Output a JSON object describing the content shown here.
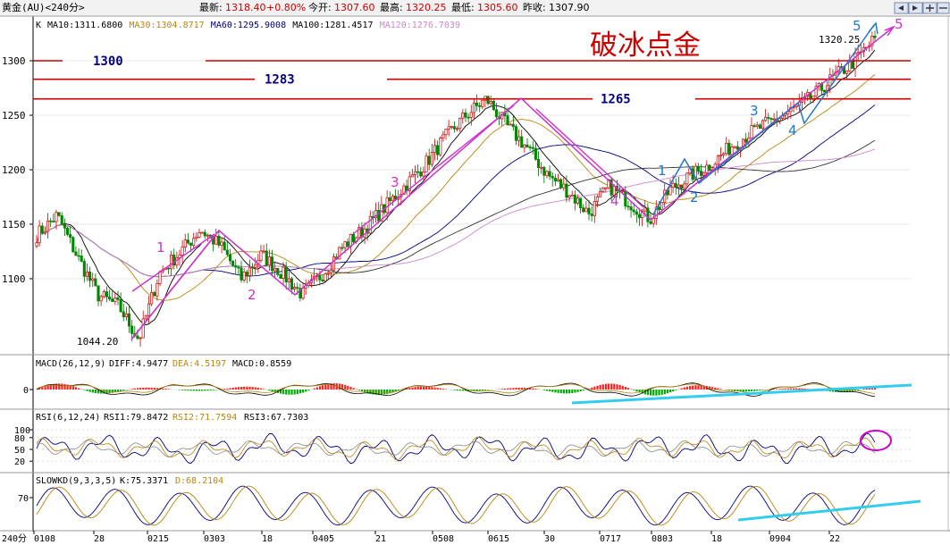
{
  "header": {
    "symbol": "黄金(AU)<240分>",
    "latest_label": "最新:",
    "latest_value": "1318.40",
    "change": "+0.80%",
    "open_label": "今开:",
    "open_value": "1307.60",
    "high_label": "最高:",
    "high_value": "1320.25",
    "low_label": "最低:",
    "low_value": "1305.60",
    "prev_label": "昨收:",
    "prev_value": "1307.90"
  },
  "ma_legend": [
    {
      "text": "MA10:1311.6800",
      "color": "#000000"
    },
    {
      "text": "MA30:1304.8717",
      "color": "#b8860b"
    },
    {
      "text": "MA60:1295.9008",
      "color": "#000080"
    },
    {
      "text": "MA100:1281.4517",
      "color": "#000000"
    },
    {
      "text": "MA120:1276.7039",
      "color": "#cc88cc"
    }
  ],
  "k_label": "K",
  "annotation_title": "破冰点金",
  "price_lines": [
    {
      "label": "1300",
      "value": 1300
    },
    {
      "label": "1283",
      "value": 1283
    },
    {
      "label": "1265",
      "value": 1265
    }
  ],
  "price_labels": {
    "low": "1044.20",
    "high": "1320.25"
  },
  "wave_labels": [
    {
      "text": "1",
      "color": "#cc33cc"
    },
    {
      "text": "2",
      "color": "#cc33cc"
    },
    {
      "text": "3",
      "color": "#cc33cc"
    },
    {
      "text": "4",
      "color": "#cc33cc"
    },
    {
      "text": "5",
      "color": "#cc33cc"
    },
    {
      "text": "1",
      "color": "#2277cc"
    },
    {
      "text": "2",
      "color": "#2277cc"
    },
    {
      "text": "3",
      "color": "#2277cc"
    },
    {
      "text": "4",
      "color": "#2277cc"
    },
    {
      "text": "5",
      "color": "#2277cc"
    }
  ],
  "macd": {
    "label": "MACD(26,12,9)",
    "diff": "DIFF:4.9477",
    "dea": "DEA:4.5197",
    "macd": "MACD:0.8559",
    "tick": "0"
  },
  "rsi": {
    "label": "RSI(6,12,24)",
    "rsi1": "RSI1:79.8472",
    "rsi2": "RSI2:71.7594",
    "rsi3": "RSI3:67.7303",
    "ticks": [
      "100",
      "80",
      "50",
      "20"
    ]
  },
  "kd": {
    "label": "SLOWKD(9,3,3,5)",
    "k": "K:75.3371",
    "d": "D:68.2104",
    "tick": "70"
  },
  "period_label": "240分",
  "colors": {
    "up": "#ff2020",
    "down": "#008800",
    "magenta": "#cc33cc",
    "blue": "#2277cc",
    "cyan": "#33ccee",
    "red_line": "#cc0000",
    "navy": "#000080"
  },
  "chart_data": {
    "type": "candlestick",
    "y_axis_ticks": [
      1300,
      1250,
      1200,
      1150,
      1100
    ],
    "ylim": [
      1035,
      1330
    ],
    "x_tick_labels": [
      "0108",
      "28",
      "0215",
      "0303",
      "18",
      "0405",
      "21",
      "0508",
      "0615",
      "30",
      "0717",
      "0803",
      "18",
      "0904",
      "22"
    ],
    "price_path": [
      1140,
      1158,
      1120,
      1085,
      1075,
      1044.2,
      1105,
      1124,
      1145,
      1130,
      1100,
      1122,
      1105,
      1085,
      1105,
      1130,
      1145,
      1165,
      1185,
      1205,
      1230,
      1250,
      1265,
      1240,
      1220,
      1195,
      1180,
      1160,
      1185,
      1170,
      1155,
      1182,
      1195,
      1205,
      1222,
      1235,
      1245,
      1255,
      1268,
      1285,
      1300,
      1320.25
    ]
  }
}
